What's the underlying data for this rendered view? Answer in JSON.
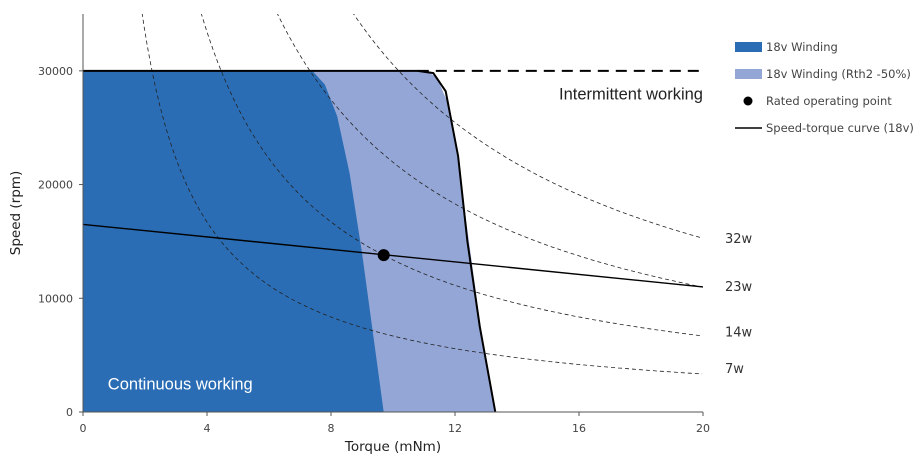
{
  "chart_data": {
    "type": "area",
    "xlabel": "Torque  (mNm)",
    "ylabel": "Speed (rpm)",
    "xlim": [
      0,
      20
    ],
    "ylim": [
      0,
      35000
    ],
    "x_ticks": [
      "0",
      "4",
      "8",
      "12",
      "16",
      "20"
    ],
    "x_tick_values": [
      0,
      4,
      8,
      12,
      16,
      20
    ],
    "y_ticks": [
      "0",
      "10000",
      "20000",
      "30000"
    ],
    "y_tick_values": [
      0,
      10000,
      20000,
      30000
    ],
    "grid": false,
    "legend_position": "right",
    "legend": [
      {
        "label": "18v Winding",
        "marker": "bar",
        "color": "#2a6db5"
      },
      {
        "label": "18v Winding (Rth2 -50%)",
        "marker": "bar",
        "color": "#94a6d6"
      },
      {
        "label": "Rated operating point",
        "marker": "dot",
        "color": "#000000"
      },
      {
        "label": "Speed-torque curve (18v)",
        "marker": "line",
        "color": "#000000"
      }
    ],
    "series": [
      {
        "legend_index": 0,
        "kind": "area",
        "color": "#2a6db5",
        "points": [
          [
            0,
            0
          ],
          [
            0,
            30000
          ],
          [
            7.4,
            30000
          ],
          [
            7.8,
            28800
          ],
          [
            8.2,
            26000
          ],
          [
            8.6,
            21000
          ],
          [
            9.0,
            14000
          ],
          [
            9.4,
            6000
          ],
          [
            9.7,
            0
          ]
        ]
      },
      {
        "legend_index": 1,
        "kind": "area",
        "color": "#94a6d6",
        "points": [
          [
            0,
            0
          ],
          [
            0,
            30000
          ],
          [
            11.0,
            30000
          ],
          [
            11.4,
            29500
          ],
          [
            11.8,
            27000
          ],
          [
            12.1,
            22000
          ],
          [
            12.5,
            14000
          ],
          [
            12.9,
            6000
          ],
          [
            13.3,
            0
          ]
        ]
      },
      {
        "legend_index": 3,
        "kind": "line",
        "color": "#000000",
        "points": [
          [
            0,
            16500
          ],
          [
            20,
            11000
          ]
        ]
      },
      {
        "legend_index": 2,
        "kind": "point",
        "color": "#000000",
        "points": [
          [
            9.7,
            13800
          ]
        ]
      }
    ],
    "envelope": {
      "color": "#000000",
      "points": [
        [
          0,
          30000
        ],
        [
          10.8,
          30000
        ],
        [
          11.3,
          29800
        ],
        [
          11.7,
          28200
        ],
        [
          12.1,
          22500
        ],
        [
          12.4,
          15000
        ],
        [
          12.8,
          7500
        ],
        [
          13.3,
          0
        ]
      ]
    },
    "limit_line": {
      "y": 30000,
      "x_start": 10.8,
      "x_end": 20,
      "style": "dashed"
    },
    "power_curves": [
      {
        "label": "7w",
        "watts": 7,
        "label_y": 3800
      },
      {
        "label": "14w",
        "watts": 14,
        "label_y": 7000
      },
      {
        "label": "23w",
        "watts": 23,
        "label_y": 11000
      },
      {
        "label": "32w",
        "watts": 32,
        "label_y": 15200
      }
    ],
    "annotations": [
      {
        "text": "Intermittent working",
        "x": 20,
        "y": 27500,
        "anchor": "end",
        "color": "#222222"
      },
      {
        "text": "Continuous working",
        "x": 0.8,
        "y": 2000,
        "anchor": "start",
        "color": "#ffffff"
      }
    ]
  }
}
